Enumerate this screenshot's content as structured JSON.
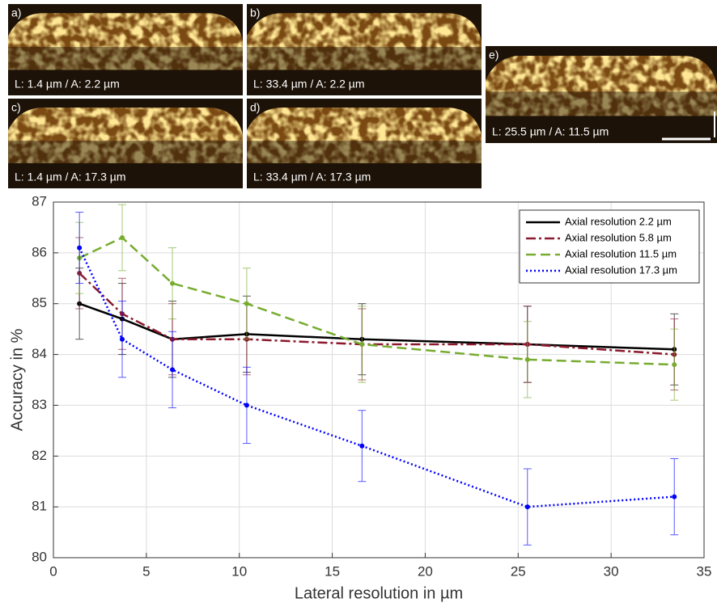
{
  "panels": [
    {
      "letter": "a)",
      "label": "L: 1.4 µm / A: 2.2 µm"
    },
    {
      "letter": "b)",
      "label": "L: 33.4 µm / A: 2.2 µm"
    },
    {
      "letter": "c)",
      "label": "L: 1.4 µm / A: 17.3 µm"
    },
    {
      "letter": "d)",
      "label": "L: 33.4 µm / A: 17.3 µm"
    },
    {
      "letter": "e)",
      "label": "L: 25.5 µm / A: 11.5 µm"
    }
  ],
  "chart_data": {
    "type": "line",
    "xlabel": "Lateral resolution in µm",
    "ylabel": "Accuracy in %",
    "x": [
      1.4,
      3.7,
      6.4,
      10.4,
      16.6,
      25.5,
      33.4
    ],
    "series": [
      {
        "name": "Axial resolution 2.2 µm",
        "color": "#000000",
        "dash": "solid",
        "values": [
          85.0,
          84.7,
          84.3,
          84.4,
          84.3,
          84.2,
          84.1
        ],
        "errors": [
          0.7,
          0.7,
          0.75,
          0.75,
          0.7,
          0.75,
          0.7
        ]
      },
      {
        "name": "Axial resolution 5.8 µm",
        "color": "#8b1a2e",
        "dash": "dashdot",
        "values": [
          85.6,
          84.8,
          84.3,
          84.3,
          84.2,
          84.2,
          84.0
        ],
        "errors": [
          0.7,
          0.7,
          0.7,
          0.7,
          0.7,
          0.75,
          0.7
        ]
      },
      {
        "name": "Axial resolution 11.5 µm",
        "color": "#77ac30",
        "dash": "dashed",
        "values": [
          85.9,
          86.3,
          85.4,
          85.0,
          84.2,
          83.9,
          83.8
        ],
        "errors": [
          0.7,
          0.65,
          0.7,
          0.7,
          0.75,
          0.75,
          0.7
        ]
      },
      {
        "name": "Axial resolution 17.3 µm",
        "color": "#0000ff",
        "dash": "dotted",
        "values": [
          86.1,
          84.3,
          83.7,
          83.0,
          82.2,
          81.0,
          81.2
        ],
        "errors": [
          0.7,
          0.75,
          0.75,
          0.75,
          0.7,
          0.75,
          0.75
        ]
      }
    ],
    "xlim": [
      0,
      35
    ],
    "xticks": [
      0,
      5,
      10,
      15,
      20,
      25,
      30,
      35
    ],
    "ylim": [
      80,
      87
    ],
    "yticks": [
      80,
      81,
      82,
      83,
      84,
      85,
      86,
      87
    ],
    "grid": true,
    "legend": "upper right"
  }
}
